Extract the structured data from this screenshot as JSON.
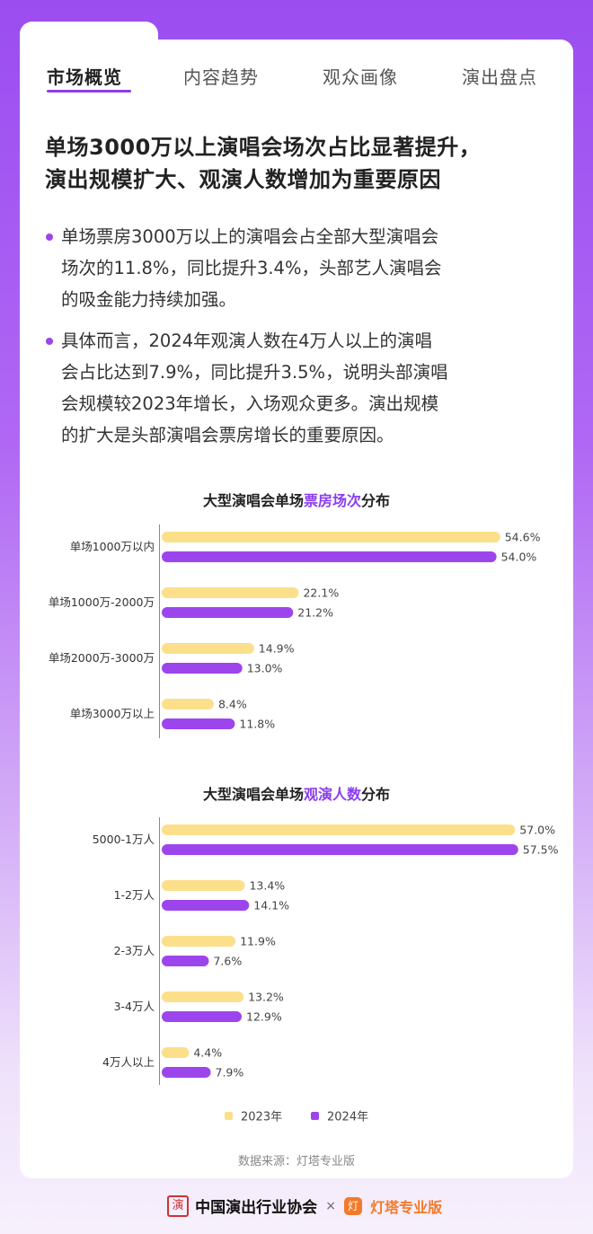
{
  "tabs": [
    {
      "label": "市场概览",
      "active": true
    },
    {
      "label": "内容趋势",
      "active": false
    },
    {
      "label": "观众画像",
      "active": false
    },
    {
      "label": "演出盘点",
      "active": false
    }
  ],
  "headline": {
    "line1": "单场3000万以上演唱会场次占比显著提升，",
    "line2": "演出规模扩大、观演人数增加为重要原因"
  },
  "bullets": [
    {
      "lines": [
        "单场票房3000万以上的演唱会占全部大型演唱会",
        "场次的11.8%，同比提升3.4%，头部艺人演唱会",
        "的吸金能力持续加强。"
      ]
    },
    {
      "lines": [
        "具体而言，2024年观演人数在4万人以上的演唱",
        "会占比达到7.9%，同比提升3.5%，说明头部演唱",
        "会规模较2023年增长，入场观众更多。演出规模",
        "的扩大是头部演唱会票房增长的重要原因。"
      ]
    }
  ],
  "colors": {
    "series_2023": "#fbdf8a",
    "series_2024": "#9d45ec",
    "highlight": "#8a3df0",
    "axis": "#666666"
  },
  "chart_data": [
    {
      "type": "bar",
      "orientation": "horizontal",
      "title_prefix": "大型演唱会单场",
      "title_highlight": "票房场次",
      "title_suffix": "分布",
      "categories": [
        "单场1000万以内",
        "单场1000万-2000万",
        "单场2000万-3000万",
        "单场3000万以上"
      ],
      "series": [
        {
          "name": "2023年",
          "values": [
            54.6,
            22.1,
            14.9,
            8.4
          ],
          "labels": [
            "54.6%",
            "22.1%",
            "14.9%",
            "8.4%"
          ]
        },
        {
          "name": "2024年",
          "values": [
            54.0,
            21.2,
            13.0,
            11.8
          ],
          "labels": [
            "54.0%",
            "21.2%",
            "13.0%",
            "11.8%"
          ]
        }
      ],
      "xlim": [
        0,
        60
      ]
    },
    {
      "type": "bar",
      "orientation": "horizontal",
      "title_prefix": "大型演唱会单场",
      "title_highlight": "观演人数",
      "title_suffix": "分布",
      "categories": [
        "5000-1万人",
        "1-2万人",
        "2-3万人",
        "3-4万人",
        "4万人以上"
      ],
      "series": [
        {
          "name": "2023年",
          "values": [
            57.0,
            13.4,
            11.9,
            13.2,
            4.4
          ],
          "labels": [
            "57.0%",
            "13.4%",
            "11.9%",
            "13.2%",
            "4.4%"
          ]
        },
        {
          "name": "2024年",
          "values": [
            57.5,
            14.1,
            7.6,
            12.9,
            7.9
          ],
          "labels": [
            "57.5%",
            "14.1%",
            "7.6%",
            "12.9%",
            "7.9%"
          ]
        }
      ],
      "xlim": [
        0,
        60
      ]
    }
  ],
  "legend": {
    "items": [
      "2023年",
      "2024年"
    ],
    "placement": "bottom"
  },
  "source": "数据来源：灯塔专业版",
  "brand": {
    "seal_char": "演",
    "association": "中国演出行业协会",
    "separator": "×",
    "logo_char": "灯",
    "product": "灯塔专业版"
  }
}
